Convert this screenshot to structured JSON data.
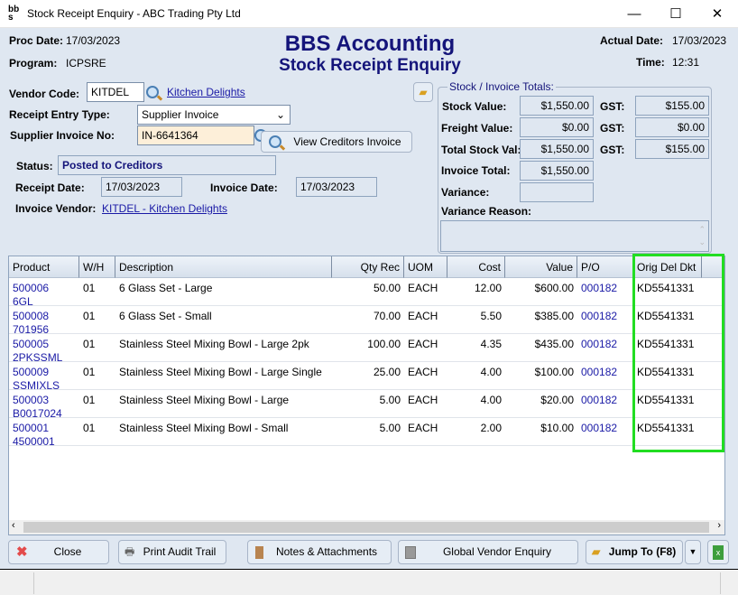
{
  "window": {
    "title": "Stock Receipt Enquiry - ABC Trading Pty Ltd",
    "minimize": "—",
    "maximize": "☐",
    "close": "✕"
  },
  "header": {
    "proc_date_label": "Proc Date:",
    "proc_date": "17/03/2023",
    "program_label": "Program:",
    "program": "ICPSRE",
    "app_title": "BBS Accounting",
    "screen_title": "Stock Receipt Enquiry",
    "actual_date_label": "Actual Date:",
    "actual_date": "17/03/2023",
    "time_label": "Time:",
    "time": "12:31"
  },
  "form": {
    "vendor_code_label": "Vendor Code:",
    "vendor_code": "KITDEL",
    "vendor_name": "Kitchen Delights",
    "receipt_type_label": "Receipt Entry Type:",
    "receipt_type": "Supplier Invoice",
    "supplier_invoice_label": "Supplier Invoice No:",
    "supplier_invoice": "IN-6641364",
    "view_creditors_invoice": "View Creditors Invoice",
    "status_label": "Status:",
    "status": "Posted to Creditors",
    "receipt_date_label": "Receipt Date:",
    "receipt_date": "17/03/2023",
    "invoice_date_label": "Invoice Date:",
    "invoice_date": "17/03/2023",
    "invoice_vendor_label": "Invoice Vendor:",
    "invoice_vendor": "KITDEL - Kitchen Delights"
  },
  "totals": {
    "legend": "Stock / Invoice Totals:",
    "stock_value_label": "Stock Value:",
    "stock_value": "$1,550.00",
    "gst_label": "GST:",
    "stock_gst": "$155.00",
    "freight_value_label": "Freight Value:",
    "freight_value": "$0.00",
    "freight_gst": "$0.00",
    "total_stock_label": "Total Stock Val:",
    "total_stock": "$1,550.00",
    "total_gst": "$155.00",
    "invoice_total_label": "Invoice Total:",
    "invoice_total": "$1,550.00",
    "variance_label": "Variance:",
    "variance": "",
    "variance_reason_label": "Variance Reason:",
    "variance_reason": ""
  },
  "grid": {
    "columns": [
      "Product",
      "W/H",
      "Description",
      "Qty Rec",
      "UOM",
      "Cost",
      "Value",
      "P/O",
      "Orig Del Dkt"
    ],
    "rows": [
      {
        "product": "500006",
        "alt": "6GL",
        "wh": "01",
        "desc": "6 Glass Set - Large",
        "qty": "50.00",
        "uom": "EACH",
        "cost": "12.00",
        "value": "$600.00",
        "po": "000182",
        "dkt": "KD5541331"
      },
      {
        "product": "500008",
        "alt": "701956",
        "wh": "01",
        "desc": "6 Glass Set - Small",
        "qty": "70.00",
        "uom": "EACH",
        "cost": "5.50",
        "value": "$385.00",
        "po": "000182",
        "dkt": "KD5541331"
      },
      {
        "product": "500005",
        "alt": "2PKSSML",
        "wh": "01",
        "desc": "Stainless Steel Mixing Bowl - Large 2pk",
        "qty": "100.00",
        "uom": "EACH",
        "cost": "4.35",
        "value": "$435.00",
        "po": "000182",
        "dkt": "KD5541331"
      },
      {
        "product": "500009",
        "alt": "SSMIXLS",
        "wh": "01",
        "desc": "Stainless Steel Mixing Bowl - Large Single",
        "qty": "25.00",
        "uom": "EACH",
        "cost": "4.00",
        "value": "$100.00",
        "po": "000182",
        "dkt": "KD5541331"
      },
      {
        "product": "500003",
        "alt": "B0017024",
        "wh": "01",
        "desc": "Stainless Steel Mixing Bowl - Large",
        "qty": "5.00",
        "uom": "EACH",
        "cost": "4.00",
        "value": "$20.00",
        "po": "000182",
        "dkt": "KD5541331"
      },
      {
        "product": "500001",
        "alt": "4500001",
        "wh": "01",
        "desc": "Stainless Steel Mixing Bowl - Small",
        "qty": "5.00",
        "uom": "EACH",
        "cost": "2.00",
        "value": "$10.00",
        "po": "000182",
        "dkt": "KD5541331"
      }
    ]
  },
  "buttons": {
    "close": "Close",
    "print": "Print Audit Trail",
    "notes": "Notes & Attachments",
    "global_vendor": "Global Vendor Enquiry",
    "jump_to": "Jump To (F8)"
  },
  "colors": {
    "highlight": "#22dd22",
    "title_navy": "#14147a",
    "background": "#dfe7f1"
  }
}
